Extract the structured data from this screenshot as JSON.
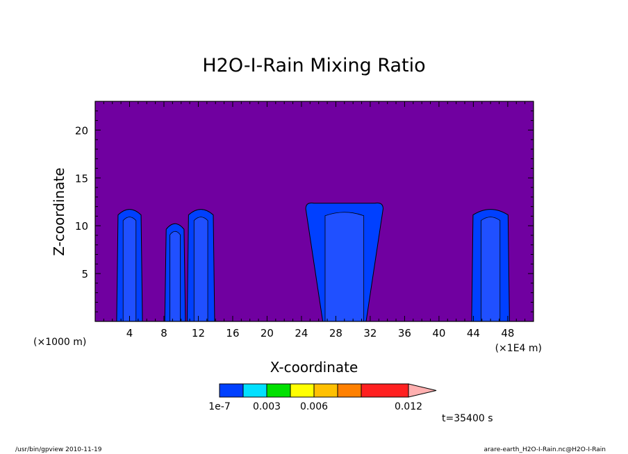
{
  "chart_data": {
    "type": "contour",
    "title": "H2O-I-Rain Mixing Ratio",
    "xlabel": "X-coordinate",
    "ylabel": "Z-coordinate",
    "x_unit_left": "(×1000 m)",
    "x_unit_right": "(×1E4 m)",
    "xlim": [
      0,
      51
    ],
    "ylim": [
      0,
      23
    ],
    "xticks": [
      4,
      8,
      12,
      16,
      20,
      24,
      28,
      32,
      36,
      40,
      44,
      48
    ],
    "yticks": [
      5,
      10,
      15,
      20
    ],
    "background_color": "#7000a0",
    "rain_cells": [
      {
        "x_center": 4.0,
        "width": 3.0,
        "z_top": 12.0
      },
      {
        "x_center": 9.3,
        "width": 2.4,
        "z_top": 10.5
      },
      {
        "x_center": 12.3,
        "width": 3.2,
        "z_top": 12.0
      },
      {
        "x_center": 29.0,
        "width": 9.0,
        "z_top": 12.5
      },
      {
        "x_center": 46.0,
        "width": 4.4,
        "z_top": 12.0
      }
    ],
    "colorbar": {
      "levels": [
        1e-07,
        0.0015,
        0.003,
        0.0045,
        0.006,
        0.0075,
        0.009,
        0.012
      ],
      "labels": [
        "1e-7",
        "0.003",
        "0.006",
        "0.012"
      ],
      "colors": [
        "#0040ff",
        "#00e0ff",
        "#00e000",
        "#ffff00",
        "#ffc000",
        "#ff8000",
        "#ff2020",
        "#ff8080",
        "#ffb0b0"
      ]
    },
    "time_label": "t=35400 s"
  },
  "footer": {
    "left": "/usr/bin/gpview   2010-11-19",
    "right": "arare-earth_H2O-I-Rain.nc@H2O-I-Rain"
  }
}
